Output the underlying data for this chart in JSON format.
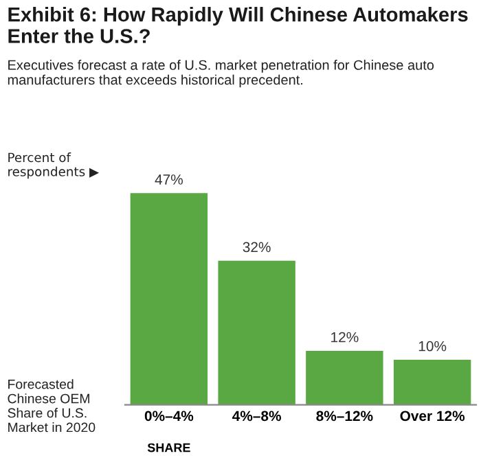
{
  "chart_data": {
    "type": "bar",
    "title": "Exhibit 6: How Rapidly Will Chinese Automakers\nEnter the U.S.?",
    "subtitle": "Executives forecast a rate of U.S. market penetration for Chinese auto\nmanufacturers that exceeds historical precedent.",
    "ylabel": "Percent of\nrespondents ▶",
    "xlabel": "Forecasted\nChinese OEM\nShare of U.S.\nMarket in 2020",
    "annotations": [
      "SHARE"
    ],
    "categories": [
      "0%–4%",
      "4%–8%",
      "8%–12%",
      "Over 12%"
    ],
    "values": [
      47,
      32,
      12,
      10
    ],
    "value_labels": [
      "47%",
      "32%",
      "12%",
      "10%"
    ],
    "color": "#5aa844"
  }
}
